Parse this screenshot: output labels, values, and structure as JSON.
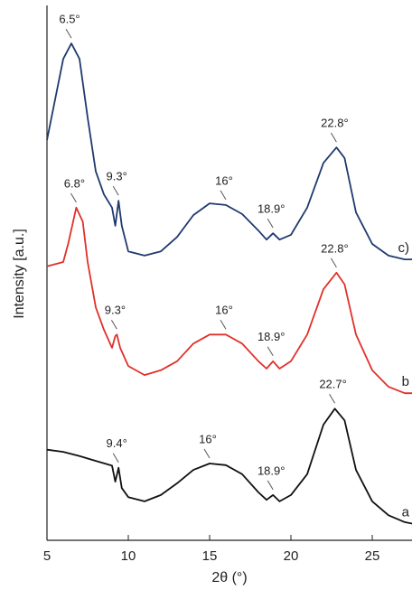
{
  "chart_data": {
    "type": "line",
    "xlabel": "2θ (°)",
    "ylabel": "Intensity [a.u.]",
    "xlim": [
      5,
      27.5
    ],
    "xticks": [
      5,
      10,
      15,
      20,
      25
    ],
    "ylim": [
      0,
      100
    ],
    "series": [
      {
        "name": "a",
        "color": "#111111",
        "x": [
          5,
          6,
          7,
          8,
          9,
          9.2,
          9.4,
          9.6,
          10,
          11,
          12,
          13,
          14,
          15,
          16,
          17,
          18,
          18.5,
          18.9,
          19.3,
          20,
          21,
          22,
          22.7,
          23.3,
          24,
          25,
          26,
          27,
          27.5
        ],
        "values": [
          17,
          16.6,
          15.8,
          14.9,
          14,
          11,
          13.6,
          9.8,
          8.1,
          7.3,
          8.5,
          10.7,
          13.2,
          14.4,
          14.1,
          12.4,
          9,
          7.6,
          8.5,
          7.3,
          8.5,
          12.4,
          21.7,
          24.7,
          22.5,
          13.2,
          7.3,
          4.7,
          3.4,
          3.1
        ],
        "annotations": [
          {
            "text": "9.4°",
            "x": 9.4
          },
          {
            "text": "16°",
            "x": 15
          },
          {
            "text": "18.9°",
            "x": 18.9
          },
          {
            "text": "22.7°",
            "x": 22.7
          }
        ]
      },
      {
        "name": "b",
        "color": "#e0302a",
        "x": [
          5,
          6,
          6.3,
          6.8,
          7.2,
          7.5,
          8,
          8.5,
          9,
          9.2,
          9.3,
          9.5,
          10,
          11,
          12,
          13,
          14,
          15,
          16,
          17,
          18,
          18.5,
          18.9,
          19.3,
          20,
          21,
          22,
          22.8,
          23.3,
          24,
          25,
          26,
          27,
          27.5
        ],
        "values": [
          51.4,
          52.2,
          55.6,
          62.4,
          59.8,
          52.2,
          43.7,
          39.5,
          36.1,
          38.3,
          38.6,
          36.1,
          32.7,
          31,
          31.9,
          33.6,
          36.9,
          38.6,
          38.6,
          36.9,
          33.6,
          32.2,
          33.6,
          32.2,
          33.6,
          38.6,
          47.1,
          50.2,
          48,
          38.6,
          31.9,
          28.8,
          27.6,
          27.6
        ],
        "annotations": [
          {
            "text": "6.8°",
            "x": 6.8
          },
          {
            "text": "9.3°",
            "x": 9.3
          },
          {
            "text": "16°",
            "x": 16
          },
          {
            "text": "18.9°",
            "x": 18.9
          },
          {
            "text": "22.8°",
            "x": 22.8
          }
        ]
      },
      {
        "name": "c)",
        "color": "#1f3a6e",
        "x": [
          5,
          5.5,
          6,
          6.5,
          7,
          7.5,
          8,
          8.5,
          9,
          9.2,
          9.4,
          9.6,
          10,
          11,
          12,
          13,
          14,
          15,
          16,
          17,
          18,
          18.5,
          18.9,
          19.3,
          20,
          21,
          22,
          22.8,
          23.3,
          24,
          25,
          26,
          27,
          27.5
        ],
        "values": [
          75.1,
          82.7,
          90.3,
          93.2,
          90.3,
          79.3,
          69.2,
          64.9,
          62.4,
          59,
          63.7,
          59,
          54.2,
          53.4,
          54.2,
          56.9,
          61,
          63.2,
          62.9,
          61.2,
          58.1,
          56.4,
          57.6,
          56.4,
          57.3,
          62.4,
          70.8,
          73.7,
          71.7,
          61.5,
          55.6,
          53.4,
          52.7,
          52.7
        ],
        "annotations": [
          {
            "text": "6.5°",
            "x": 6.5
          },
          {
            "text": "9.3°",
            "x": 9.4
          },
          {
            "text": "16°",
            "x": 16
          },
          {
            "text": "18.9°",
            "x": 18.9
          },
          {
            "text": "22.8°",
            "x": 22.8
          }
        ]
      }
    ]
  }
}
